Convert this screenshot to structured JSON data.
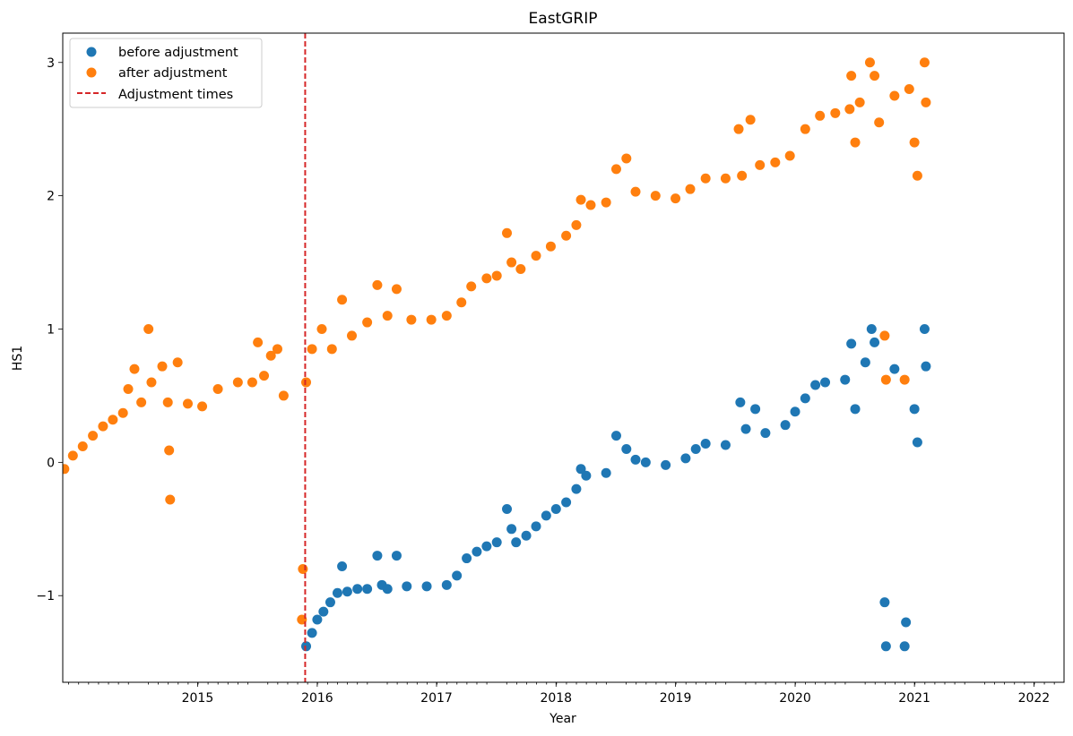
{
  "chart_data": {
    "type": "scatter",
    "title": "EastGRIP",
    "xlabel": "Year",
    "ylabel": "HS1",
    "xlim": [
      "2014-05-15",
      "2022-10-01"
    ],
    "ylim": [
      -1.65,
      3.22
    ],
    "x_ticks": [
      "2015",
      "2016",
      "2017",
      "2018",
      "2019",
      "2020",
      "2021",
      "2022"
    ],
    "y_ticks": [
      -1,
      0,
      1,
      2,
      3
    ],
    "y_tick_labels": [
      "−1",
      "0",
      "1",
      "2",
      "3"
    ],
    "grid": false,
    "legend": {
      "position": "top-left",
      "entries": [
        {
          "label": "before adjustment",
          "marker": "circle",
          "color": "#1f77b4"
        },
        {
          "label": "after adjustment",
          "marker": "circle",
          "color": "#ff7f0e"
        },
        {
          "label": "Adjustment times",
          "marker": "dashed-line",
          "color": "#d62728"
        }
      ]
    },
    "adjustment_times": [
      "2016-05-25"
    ],
    "series": [
      {
        "name": "before adjustment",
        "color": "#1f77b4",
        "points": [
          [
            "2016-05-28",
            -1.38
          ],
          [
            "2016-06-15",
            -1.28
          ],
          [
            "2016-07-01",
            -1.18
          ],
          [
            "2016-07-20",
            -1.12
          ],
          [
            "2016-08-10",
            -1.05
          ],
          [
            "2016-09-01",
            -0.98
          ],
          [
            "2016-09-15",
            -0.78
          ],
          [
            "2016-10-01",
            -0.97
          ],
          [
            "2016-11-01",
            -0.95
          ],
          [
            "2016-12-01",
            -0.95
          ],
          [
            "2017-01-01",
            -0.7
          ],
          [
            "2017-01-15",
            -0.92
          ],
          [
            "2017-02-01",
            -0.95
          ],
          [
            "2017-03-01",
            -0.7
          ],
          [
            "2017-04-01",
            -0.93
          ],
          [
            "2017-06-01",
            -0.93
          ],
          [
            "2017-08-01",
            -0.92
          ],
          [
            "2017-09-01",
            -0.85
          ],
          [
            "2017-10-01",
            -0.72
          ],
          [
            "2017-11-01",
            -0.67
          ],
          [
            "2017-12-01",
            -0.63
          ],
          [
            "2018-01-01",
            -0.6
          ],
          [
            "2018-02-01",
            -0.35
          ],
          [
            "2018-02-15",
            -0.5
          ],
          [
            "2018-03-01",
            -0.6
          ],
          [
            "2018-04-01",
            -0.55
          ],
          [
            "2018-05-01",
            -0.48
          ],
          [
            "2018-06-01",
            -0.4
          ],
          [
            "2018-07-01",
            -0.35
          ],
          [
            "2018-08-01",
            -0.3
          ],
          [
            "2018-09-01",
            -0.2
          ],
          [
            "2018-09-15",
            -0.05
          ],
          [
            "2018-10-01",
            -0.1
          ],
          [
            "2018-12-01",
            -0.08
          ],
          [
            "2019-01-01",
            0.2
          ],
          [
            "2019-02-01",
            0.1
          ],
          [
            "2019-03-01",
            0.02
          ],
          [
            "2019-04-01",
            0.0
          ],
          [
            "2019-06-01",
            -0.02
          ],
          [
            "2019-08-01",
            0.03
          ],
          [
            "2019-09-01",
            0.1
          ],
          [
            "2019-10-01",
            0.14
          ],
          [
            "2019-12-01",
            0.13
          ],
          [
            "2020-01-15",
            0.45
          ],
          [
            "2020-02-01",
            0.25
          ],
          [
            "2020-03-01",
            0.4
          ],
          [
            "2020-04-01",
            0.22
          ],
          [
            "2020-06-01",
            0.28
          ],
          [
            "2020-07-01",
            0.38
          ],
          [
            "2020-08-01",
            0.48
          ],
          [
            "2020-09-01",
            0.58
          ],
          [
            "2020-10-01",
            0.6
          ],
          [
            "2020-12-01",
            0.62
          ],
          [
            "2020-12-20",
            0.89
          ],
          [
            "2021-01-01",
            0.4
          ],
          [
            "2021-02-01",
            0.75
          ],
          [
            "2021-02-20",
            1.0
          ],
          [
            "2021-03-01",
            0.9
          ],
          [
            "2021-04-01",
            -1.05
          ],
          [
            "2021-04-05",
            -1.38
          ],
          [
            "2021-05-01",
            0.7
          ],
          [
            "2021-06-01",
            -1.38
          ],
          [
            "2021-06-05",
            -1.2
          ],
          [
            "2021-07-01",
            0.4
          ],
          [
            "2021-07-10",
            0.15
          ],
          [
            "2021-08-01",
            1.0
          ],
          [
            "2021-08-05",
            0.72
          ]
        ]
      },
      {
        "name": "after adjustment",
        "color": "#ff7f0e",
        "points": [
          [
            "2014-05-20",
            -0.05
          ],
          [
            "2014-06-15",
            0.05
          ],
          [
            "2014-07-15",
            0.12
          ],
          [
            "2014-08-15",
            0.2
          ],
          [
            "2014-09-15",
            0.27
          ],
          [
            "2014-10-15",
            0.32
          ],
          [
            "2014-11-15",
            0.37
          ],
          [
            "2014-12-01",
            0.55
          ],
          [
            "2014-12-20",
            0.7
          ],
          [
            "2015-01-10",
            0.45
          ],
          [
            "2015-02-01",
            1.0
          ],
          [
            "2015-02-10",
            0.6
          ],
          [
            "2015-03-15",
            0.72
          ],
          [
            "2015-04-01",
            0.45
          ],
          [
            "2015-04-05",
            0.09
          ],
          [
            "2015-04-08",
            -0.28
          ],
          [
            "2015-05-01",
            0.75
          ],
          [
            "2015-06-01",
            0.44
          ],
          [
            "2015-07-15",
            0.42
          ],
          [
            "2015-09-01",
            0.55
          ],
          [
            "2015-11-01",
            0.6
          ],
          [
            "2015-12-15",
            0.6
          ],
          [
            "2016-01-01",
            0.9
          ],
          [
            "2016-01-20",
            0.65
          ],
          [
            "2016-02-10",
            0.8
          ],
          [
            "2016-03-01",
            0.85
          ],
          [
            "2016-03-20",
            0.5
          ],
          [
            "2016-05-15",
            -1.18
          ],
          [
            "2016-05-18",
            -0.8
          ],
          [
            "2016-05-28",
            0.6
          ],
          [
            "2016-06-15",
            0.85
          ],
          [
            "2016-07-15",
            1.0
          ],
          [
            "2016-08-15",
            0.85
          ],
          [
            "2016-09-15",
            1.22
          ],
          [
            "2016-10-15",
            0.95
          ],
          [
            "2016-12-01",
            1.05
          ],
          [
            "2017-01-01",
            1.33
          ],
          [
            "2017-02-01",
            1.1
          ],
          [
            "2017-03-01",
            1.3
          ],
          [
            "2017-04-15",
            1.07
          ],
          [
            "2017-06-15",
            1.07
          ],
          [
            "2017-08-01",
            1.1
          ],
          [
            "2017-09-15",
            1.2
          ],
          [
            "2017-10-15",
            1.32
          ],
          [
            "2017-12-01",
            1.38
          ],
          [
            "2018-01-01",
            1.4
          ],
          [
            "2018-02-01",
            1.72
          ],
          [
            "2018-02-15",
            1.5
          ],
          [
            "2018-03-15",
            1.45
          ],
          [
            "2018-05-01",
            1.55
          ],
          [
            "2018-06-15",
            1.62
          ],
          [
            "2018-08-01",
            1.7
          ],
          [
            "2018-09-01",
            1.78
          ],
          [
            "2018-09-15",
            1.97
          ],
          [
            "2018-10-15",
            1.93
          ],
          [
            "2018-12-01",
            1.95
          ],
          [
            "2019-01-01",
            2.2
          ],
          [
            "2019-02-01",
            2.28
          ],
          [
            "2019-03-01",
            2.03
          ],
          [
            "2019-05-01",
            2.0
          ],
          [
            "2019-07-01",
            1.98
          ],
          [
            "2019-08-15",
            2.05
          ],
          [
            "2019-10-01",
            2.13
          ],
          [
            "2019-12-01",
            2.13
          ],
          [
            "2020-01-10",
            2.5
          ],
          [
            "2020-01-20",
            2.15
          ],
          [
            "2020-02-15",
            2.57
          ],
          [
            "2020-03-15",
            2.23
          ],
          [
            "2020-05-01",
            2.25
          ],
          [
            "2020-06-15",
            2.3
          ],
          [
            "2020-08-01",
            2.5
          ],
          [
            "2020-09-15",
            2.6
          ],
          [
            "2020-11-01",
            2.62
          ],
          [
            "2020-12-15",
            2.65
          ],
          [
            "2020-12-20",
            2.9
          ],
          [
            "2021-01-01",
            2.4
          ],
          [
            "2021-01-15",
            2.7
          ],
          [
            "2021-02-15",
            3.0
          ],
          [
            "2021-03-01",
            2.9
          ],
          [
            "2021-03-15",
            2.55
          ],
          [
            "2021-04-01",
            0.95
          ],
          [
            "2021-04-05",
            0.62
          ],
          [
            "2021-05-01",
            2.75
          ],
          [
            "2021-06-01",
            0.62
          ],
          [
            "2021-06-15",
            2.8
          ],
          [
            "2021-07-01",
            2.4
          ],
          [
            "2021-07-10",
            2.15
          ],
          [
            "2021-08-01",
            3.0
          ],
          [
            "2021-08-05",
            2.7
          ]
        ]
      }
    ]
  }
}
